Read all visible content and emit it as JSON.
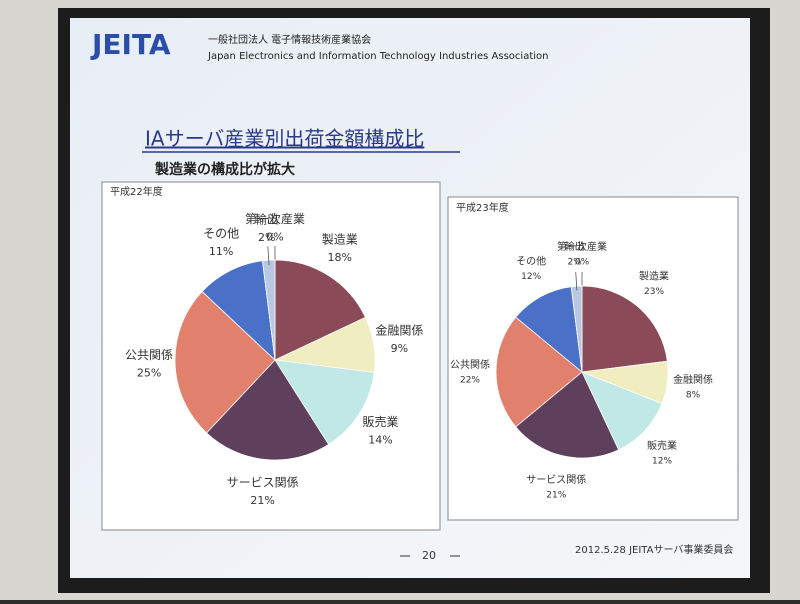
{
  "slide": {
    "logo": "JEITA",
    "org_ja": "一般社団法人 電子情報技術産業協会",
    "org_en": "Japan Electronics and Information Technology Industries Association",
    "title": "IAサーバ産業別出荷金額構成比",
    "subtitle": "製造業の構成比が拡大",
    "page": "20",
    "footer": "2012.5.28 JEITAサーバ事業委員会"
  },
  "chart_data": [
    {
      "type": "pie",
      "title": "平成22年度",
      "categories": [
        "第一次産業",
        "製造業",
        "金融関係",
        "販売業",
        "サービス関係",
        "公共関係",
        "その他",
        "輸出"
      ],
      "values": [
        0,
        18,
        9,
        14,
        21,
        25,
        11,
        2
      ],
      "value_labels": [
        "0%",
        "18%",
        "9%",
        "14%",
        "21%",
        "25%",
        "11%",
        "2%"
      ],
      "colors": [
        "#9a9ac8",
        "#8b4a58",
        "#f0eec0",
        "#bfe8e6",
        "#5e3f5c",
        "#e2806e",
        "#4a70c8",
        "#b8c8e0"
      ]
    },
    {
      "type": "pie",
      "title": "平成23年度",
      "categories": [
        "第一次産業",
        "製造業",
        "金融関係",
        "販売業",
        "サービス関係",
        "公共関係",
        "その他",
        "輸出"
      ],
      "values": [
        0,
        23,
        8,
        12,
        21,
        22,
        12,
        2
      ],
      "value_labels": [
        "0%",
        "23%",
        "8%",
        "12%",
        "21%",
        "22%",
        "12%",
        "2%"
      ],
      "colors": [
        "#9a9ac8",
        "#8b4a58",
        "#f0eec0",
        "#bfe8e6",
        "#5e3f5c",
        "#e2806e",
        "#4a70c8",
        "#b8c8e0"
      ]
    }
  ]
}
